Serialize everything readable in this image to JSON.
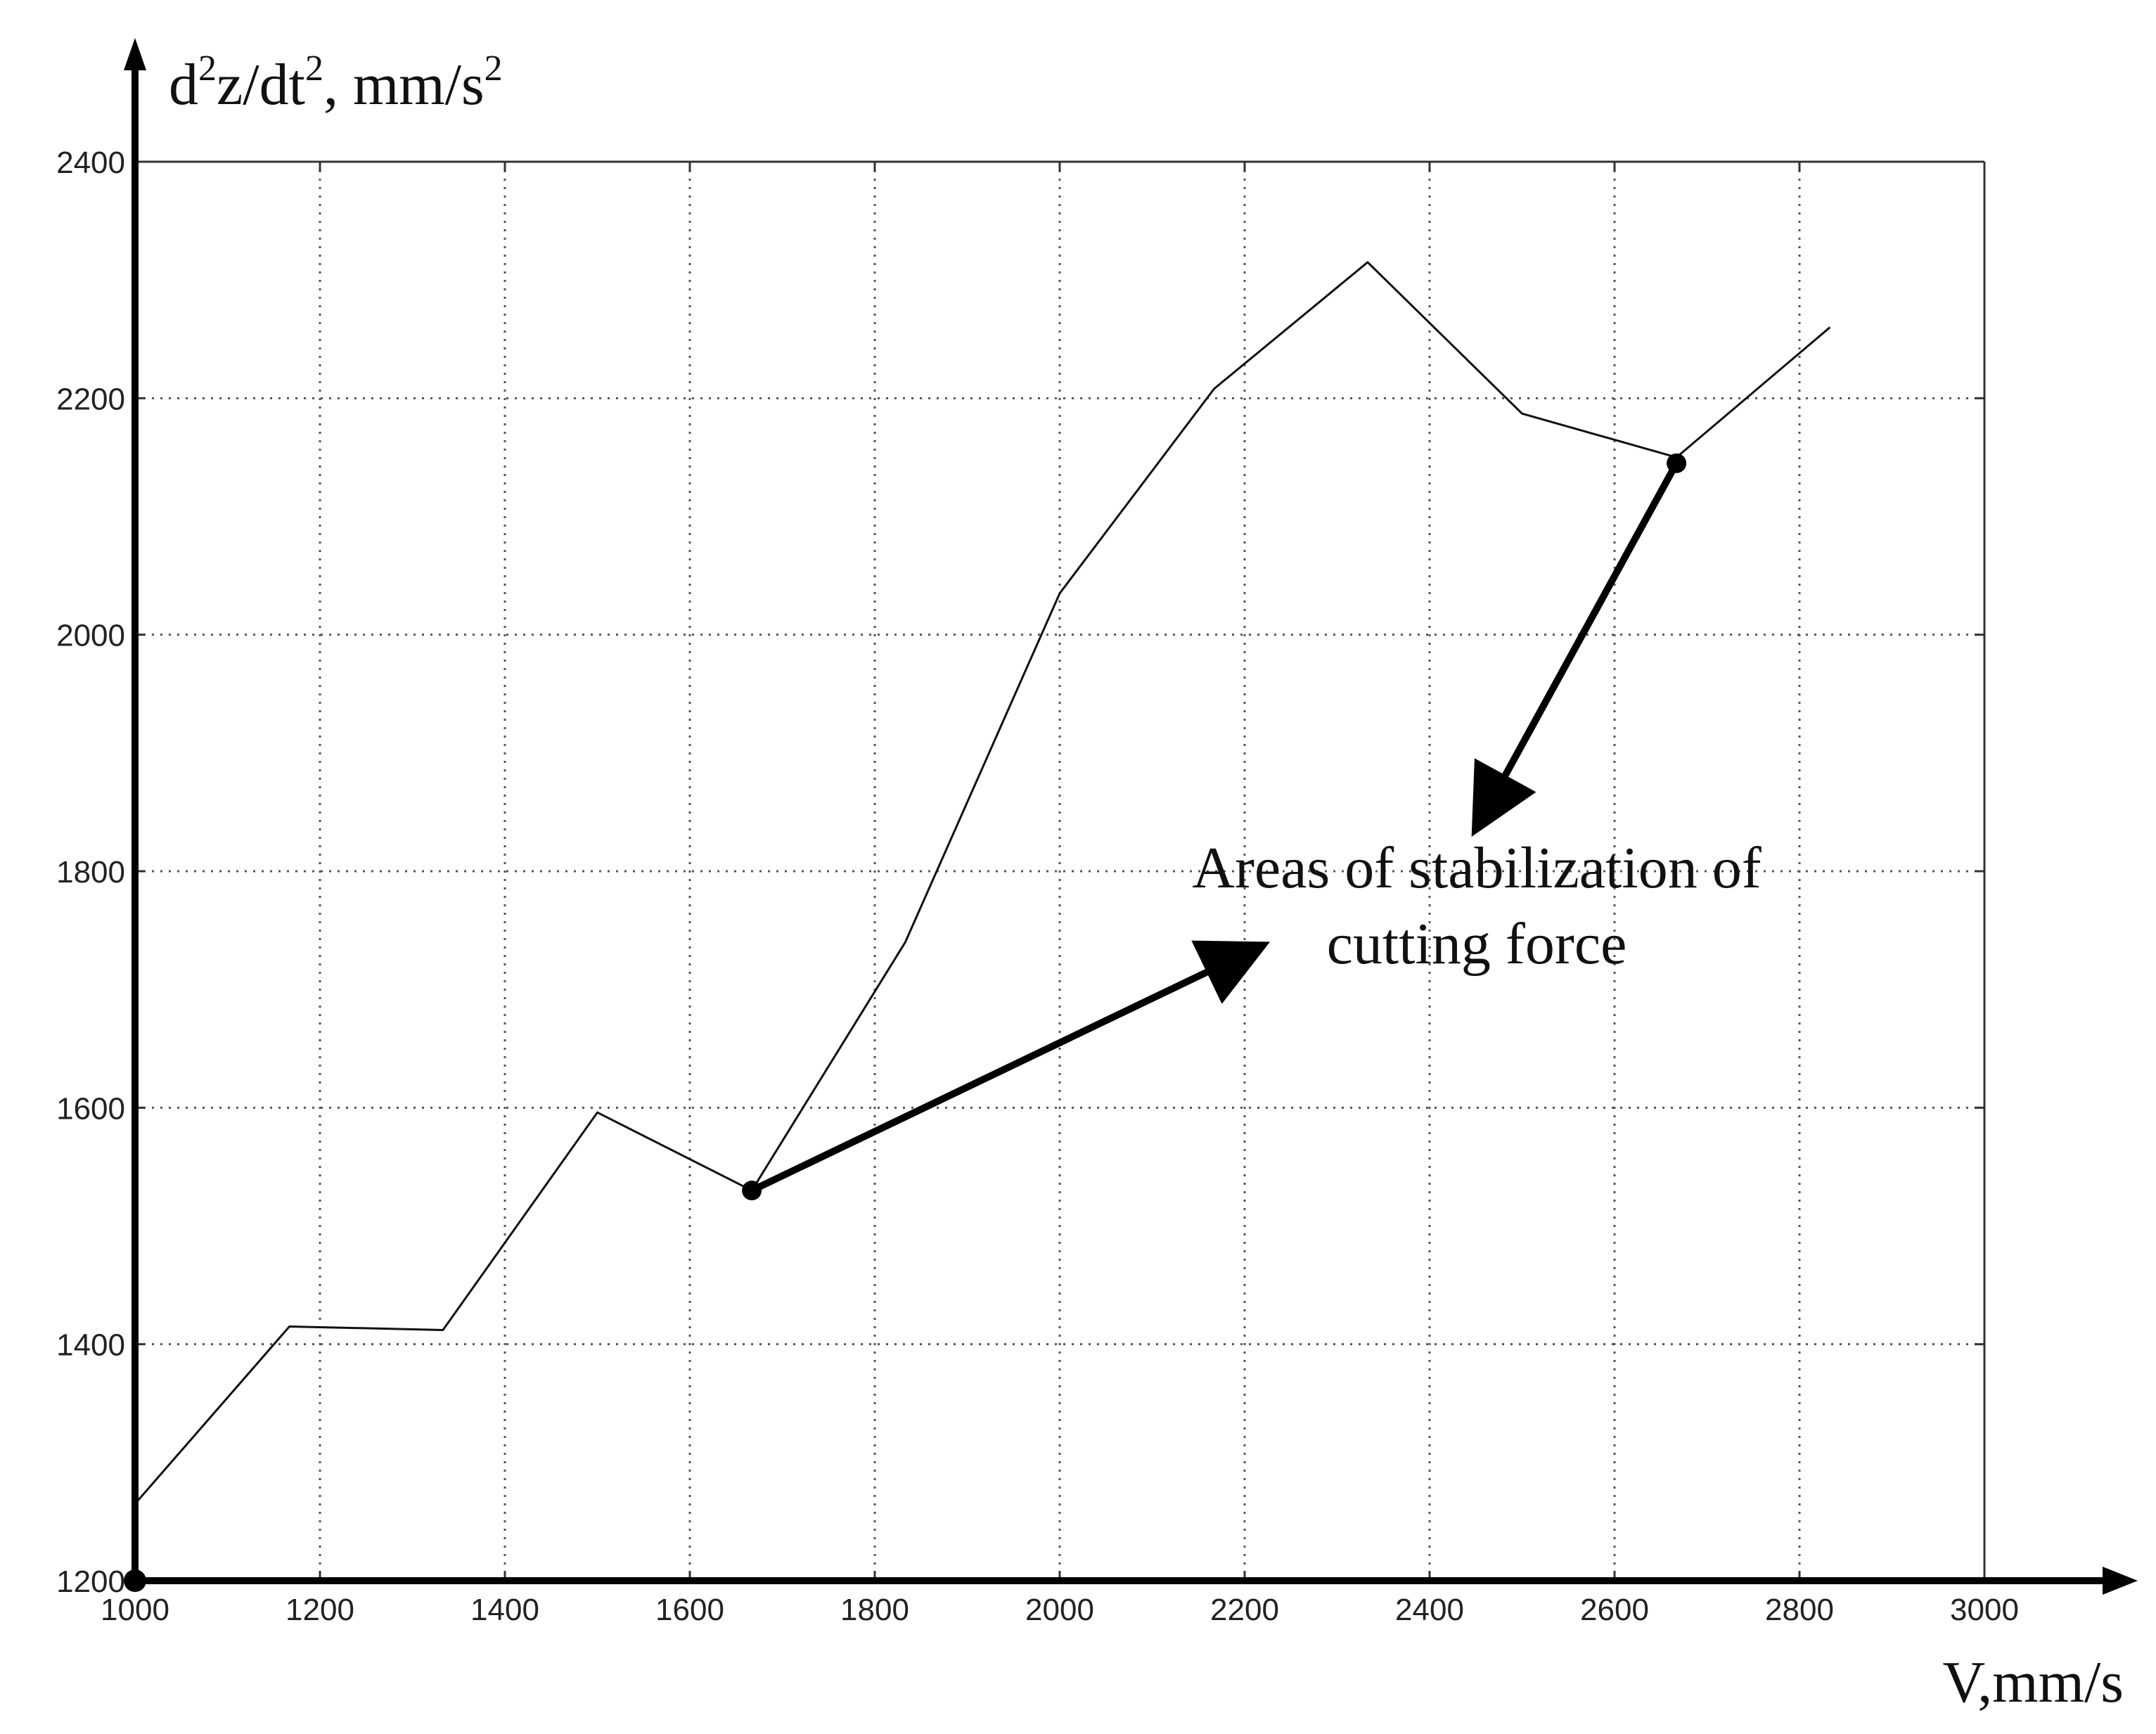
{
  "chart_data": {
    "type": "line",
    "title": "",
    "xlabel": "V,mm/s",
    "ylabel": {
      "pre": "d",
      "sup1": "2",
      "mid": "z/dt",
      "sup2": "2",
      "post": ", mm/s",
      "sup3": "2"
    },
    "xlim": [
      1000,
      3000
    ],
    "ylim": [
      1200,
      2400
    ],
    "x_ticks": [
      1000,
      1200,
      1400,
      1600,
      1800,
      2000,
      2200,
      2400,
      2600,
      2800,
      3000
    ],
    "y_ticks": [
      1200,
      1400,
      1600,
      1800,
      2000,
      2200,
      2400
    ],
    "grid": true,
    "series": [
      {
        "x": [
          1000,
          1167,
          1333,
          1500,
          1667,
          1833,
          2000,
          2167,
          2333,
          2500,
          2667,
          2833
        ],
        "y": [
          1265,
          1415,
          1412,
          1596,
          1530,
          1740,
          2035,
          2208,
          2315,
          2187,
          2150,
          2260
        ]
      }
    ],
    "annotations": {
      "text_line1": "Areas of stabilization of",
      "text_line2": "cutting force",
      "points": [
        {
          "x": 1667,
          "y": 1530,
          "arrow_to": {
            "x": 2200,
            "y": 1730
          }
        },
        {
          "x": 2667,
          "y": 2145,
          "arrow_to": {
            "x": 2460,
            "y": 1850
          }
        }
      ]
    },
    "origin_marker": {
      "x": 1000,
      "y": 1200
    }
  }
}
